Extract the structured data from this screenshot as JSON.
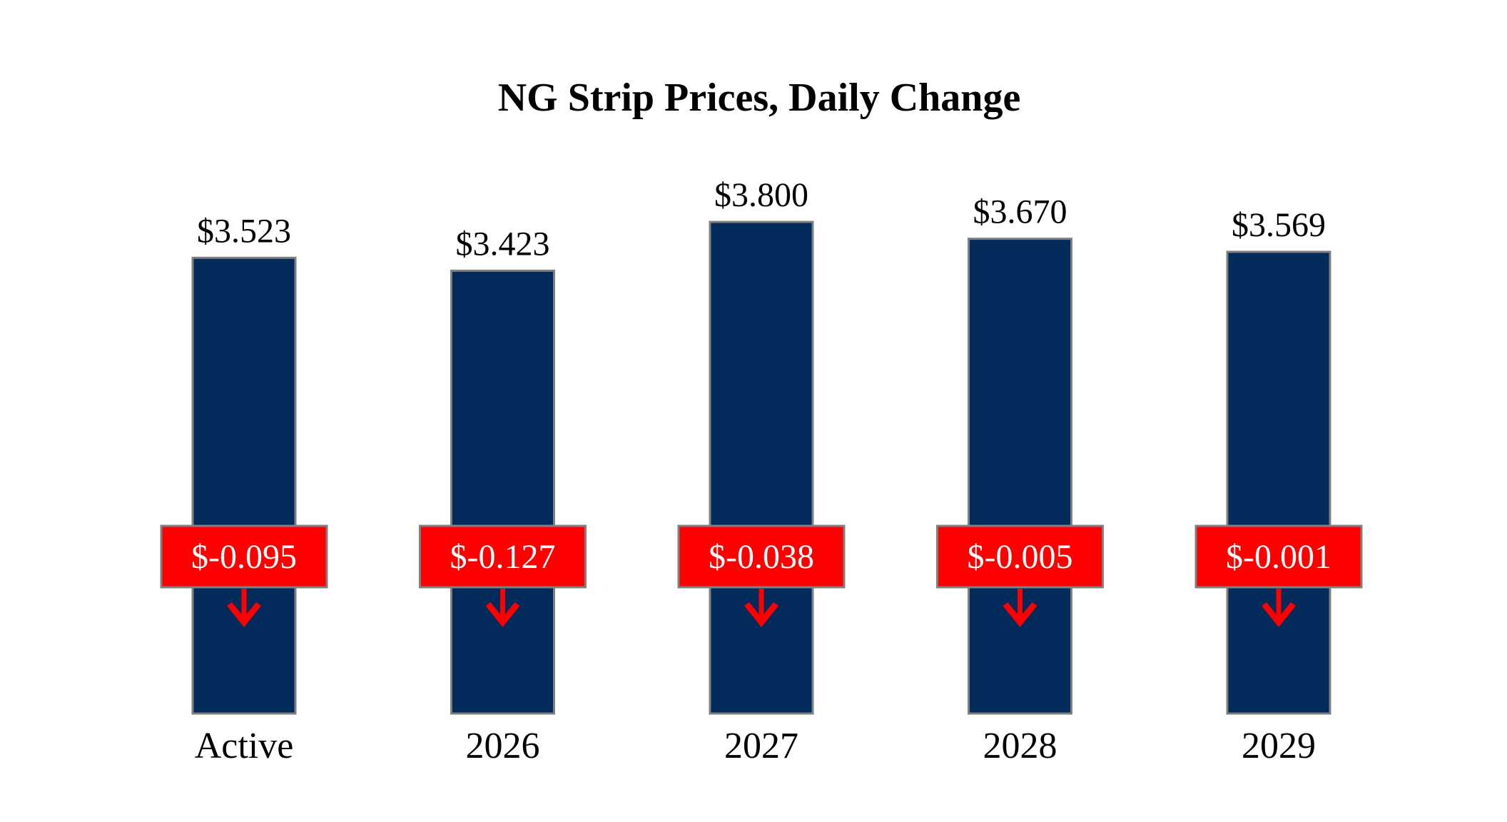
{
  "chart_data": {
    "type": "bar",
    "title": "NG Strip Prices, Daily Change",
    "categories": [
      "Active",
      "2026",
      "2027",
      "2028",
      "2029"
    ],
    "values": [
      3.523,
      3.423,
      3.8,
      3.67,
      3.569
    ],
    "value_labels": [
      "$3.523",
      "$3.423",
      "$3.800",
      "$3.670",
      "$3.569"
    ],
    "changes": [
      -0.095,
      -0.127,
      -0.038,
      -0.005,
      -0.001
    ],
    "change_labels": [
      "$-0.095",
      "$-0.127",
      "$-0.038",
      "$-0.005",
      "$-0.001"
    ],
    "change_direction": [
      "down",
      "down",
      "down",
      "down",
      "down"
    ],
    "ylim": [
      0,
      4
    ],
    "xlabel": "",
    "ylabel": "",
    "grid": false,
    "legend": "none"
  },
  "colors": {
    "bar": "#022b5c",
    "bar_border": "#7f7f7f",
    "change_box": "#ff0000",
    "change_arrow": "#ff0000",
    "change_box_border": "#7f7f7f",
    "text": "#000000",
    "change_text": "#ffffff"
  },
  "icons": {
    "change_arrow": "arrow-down-icon"
  }
}
